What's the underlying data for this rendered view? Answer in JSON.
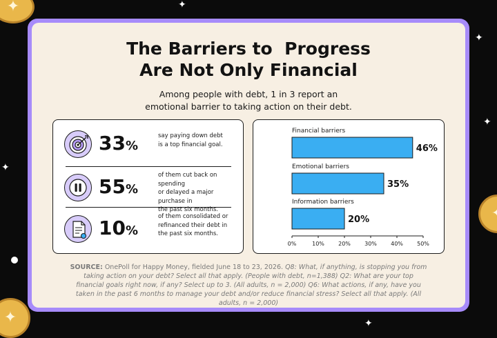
{
  "title_lines": [
    "The Barriers to  Progress",
    "Are Not Only Financial"
  ],
  "subtitle_lines": [
    "Among people with debt, 1 in 3 report an",
    "emotional barrier to taking action on their debt."
  ],
  "stats": [
    {
      "icon": "target-icon",
      "value": "33",
      "unit": "%",
      "desc_lines": [
        "say paying down debt",
        "is a top financial goal."
      ]
    },
    {
      "icon": "pause-icon",
      "value": "55",
      "unit": "%",
      "desc_lines": [
        "of them cut back on spending",
        "or delayed a major purchase in",
        "the past six months."
      ]
    },
    {
      "icon": "document-icon",
      "value": "10",
      "unit": "%",
      "desc_lines": [
        "of them consolidated or",
        "refinanced their debt in",
        "the past six months."
      ]
    }
  ],
  "chart_data": {
    "type": "bar",
    "orientation": "horizontal",
    "categories": [
      "Financial barriers",
      "Emotional barriers",
      "Information barriers"
    ],
    "values": [
      46,
      35,
      20
    ],
    "value_labels": [
      "46%",
      "35%",
      "20%"
    ],
    "xlim": [
      0,
      50
    ],
    "xticks": [
      "0%",
      "10%",
      "20%",
      "30%",
      "40%",
      "50%"
    ],
    "bar_color": "#3aaef2",
    "grid": false
  },
  "source": {
    "label": "SOURCE:",
    "text": " OnePoll for Happy Money, fielded June 18 to 23, 2026.",
    "questions": " Q8: What, if anything, is stopping you from taking action on your debt? Select all that apply. (People with debt, n=1,388) Q2: What are your top financial goals right now, if any? Select up to 3. (All adults, n = 2,000) Q6: What actions, if any, have you taken in the past 6 months to manage your debt and/or reduce financial stress? Select all that apply. (All adults, n = 2,000)"
  },
  "colors": {
    "background": "#0b0b0b",
    "frame": "#a78bfa",
    "card": "#f7efe3",
    "bar": "#3aaef2",
    "icon_fill": "#d8ccfa",
    "coin": "#e9b74a"
  }
}
